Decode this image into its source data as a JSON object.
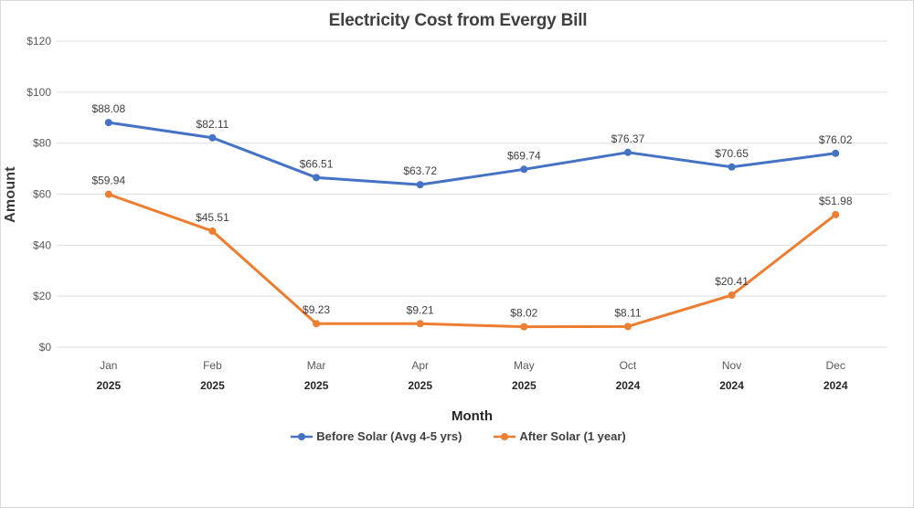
{
  "frame": {
    "background": "#FFFFFF",
    "border_color": "#D9D9D9"
  },
  "chart_data": {
    "type": "line",
    "title": "Electricity Cost from Evergy Bill",
    "xlabel": "Month",
    "ylabel": "Amount",
    "categories": [
      {
        "month": "Jan",
        "year": "2025"
      },
      {
        "month": "Feb",
        "year": "2025"
      },
      {
        "month": "Mar",
        "year": "2025"
      },
      {
        "month": "Apr",
        "year": "2025"
      },
      {
        "month": "May",
        "year": "2025"
      },
      {
        "month": "Oct",
        "year": "2024"
      },
      {
        "month": "Nov",
        "year": "2024"
      },
      {
        "month": "Dec",
        "year": "2024"
      }
    ],
    "series": [
      {
        "name": "Before Solar (Avg 4-5 yrs)",
        "color": "#4472C4",
        "values": [
          88.08,
          82.11,
          66.51,
          63.72,
          69.74,
          76.37,
          70.65,
          76.02
        ]
      },
      {
        "name": "After Solar (1 year)",
        "color": "#ED7D31",
        "values": [
          59.94,
          45.51,
          9.23,
          9.21,
          8.02,
          8.11,
          20.41,
          51.98
        ]
      }
    ],
    "ylim": [
      0,
      120
    ],
    "ytick_step": 20,
    "ytick_labels": [
      "$0",
      "$20",
      "$40",
      "$60",
      "$80",
      "$100",
      "$120"
    ],
    "grid": true,
    "gridline_color": "#E0E0E0",
    "legend_position": "bottom",
    "data_label_prefix": "$",
    "text_colors": {
      "title": "#404040",
      "y_ticks": "#595959",
      "x_month": "#595959",
      "x_year": "#262626",
      "data_label": "#404040",
      "axis_title": "#3A3A3A",
      "legend": "#404040"
    }
  }
}
